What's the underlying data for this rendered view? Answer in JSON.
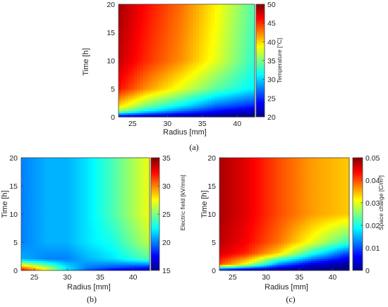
{
  "chart_data": [
    {
      "type": "heatmap",
      "panel_label": "(a)",
      "xlabel": "Radius [mm]",
      "ylabel": "Time [h]",
      "xlim": [
        23,
        42.5
      ],
      "ylim": [
        0,
        20
      ],
      "xticks": [
        "25",
        "30",
        "35",
        "40"
      ],
      "yticks": [
        "0",
        "5",
        "10",
        "15",
        "20"
      ],
      "colorbar": {
        "label": "Temperature [°C]",
        "range": [
          20,
          50
        ],
        "ticks": [
          "20",
          "25",
          "30",
          "35",
          "40",
          "45",
          "50"
        ]
      },
      "colormap": "jet",
      "z_samples": {
        "time_h": [
          0,
          1,
          2,
          5,
          10,
          20
        ],
        "radius_mm": [
          23,
          27,
          32,
          37,
          42
        ],
        "values": [
          [
            22,
            21,
            20.5,
            20,
            20
          ],
          [
            36,
            31,
            27,
            24,
            22
          ],
          [
            40,
            35,
            31,
            27,
            25
          ],
          [
            46,
            42,
            38,
            34,
            31
          ],
          [
            48,
            45,
            42,
            38,
            33
          ],
          [
            49,
            46,
            43,
            39,
            34
          ]
        ]
      }
    },
    {
      "type": "heatmap",
      "panel_label": "(b)",
      "xlabel": "Radius [mm]",
      "ylabel": "Time [h]",
      "xlim": [
        23,
        42.5
      ],
      "ylim": [
        0,
        20
      ],
      "xticks": [
        "25",
        "30",
        "35",
        "40"
      ],
      "yticks": [
        "0",
        "5",
        "10",
        "15",
        "20"
      ],
      "colorbar": {
        "label": "Electric field [kV/mm]",
        "range": [
          15,
          35
        ],
        "ticks": [
          "15",
          "20",
          "25",
          "30",
          "35"
        ]
      },
      "colormap": "jet",
      "z_samples": {
        "time_h": [
          0,
          0.5,
          2,
          5,
          10,
          20
        ],
        "radius_mm": [
          23,
          27,
          30,
          33,
          37,
          42
        ],
        "values": [
          [
            33,
            27,
            22,
            19,
            17,
            16
          ],
          [
            30,
            26,
            22,
            20,
            19,
            18
          ],
          [
            21,
            20,
            20,
            21,
            22,
            24
          ],
          [
            20,
            21,
            21,
            22,
            23,
            26
          ],
          [
            20,
            21,
            21,
            22,
            24,
            27
          ],
          [
            20,
            21,
            21,
            22,
            24,
            27
          ]
        ]
      }
    },
    {
      "type": "heatmap",
      "panel_label": "(c)",
      "xlabel": "Radius [mm]",
      "ylabel": "Time [h]",
      "xlim": [
        23,
        42.5
      ],
      "ylim": [
        0,
        20
      ],
      "xticks": [
        "25",
        "30",
        "35",
        "40"
      ],
      "yticks": [
        "0",
        "5",
        "10",
        "15",
        "20"
      ],
      "colorbar": {
        "label": "Space charge [C/m³]",
        "range": [
          0,
          0.05
        ],
        "ticks": [
          "0",
          "0.01",
          "0.02",
          "0.03",
          "0.04",
          "0.05"
        ]
      },
      "colormap": "jet",
      "z_samples": {
        "time_h": [
          0,
          1,
          3,
          5,
          10,
          20
        ],
        "radius_mm": [
          23,
          27,
          32,
          37,
          42
        ],
        "values": [
          [
            0.005,
            0.0,
            0.0,
            0.0,
            0.0
          ],
          [
            0.04,
            0.03,
            0.012,
            0.004,
            0.001
          ],
          [
            0.046,
            0.042,
            0.033,
            0.02,
            0.01
          ],
          [
            0.047,
            0.044,
            0.038,
            0.03,
            0.022
          ],
          [
            0.048,
            0.045,
            0.04,
            0.036,
            0.034
          ],
          [
            0.048,
            0.045,
            0.04,
            0.036,
            0.034
          ]
        ]
      }
    }
  ]
}
